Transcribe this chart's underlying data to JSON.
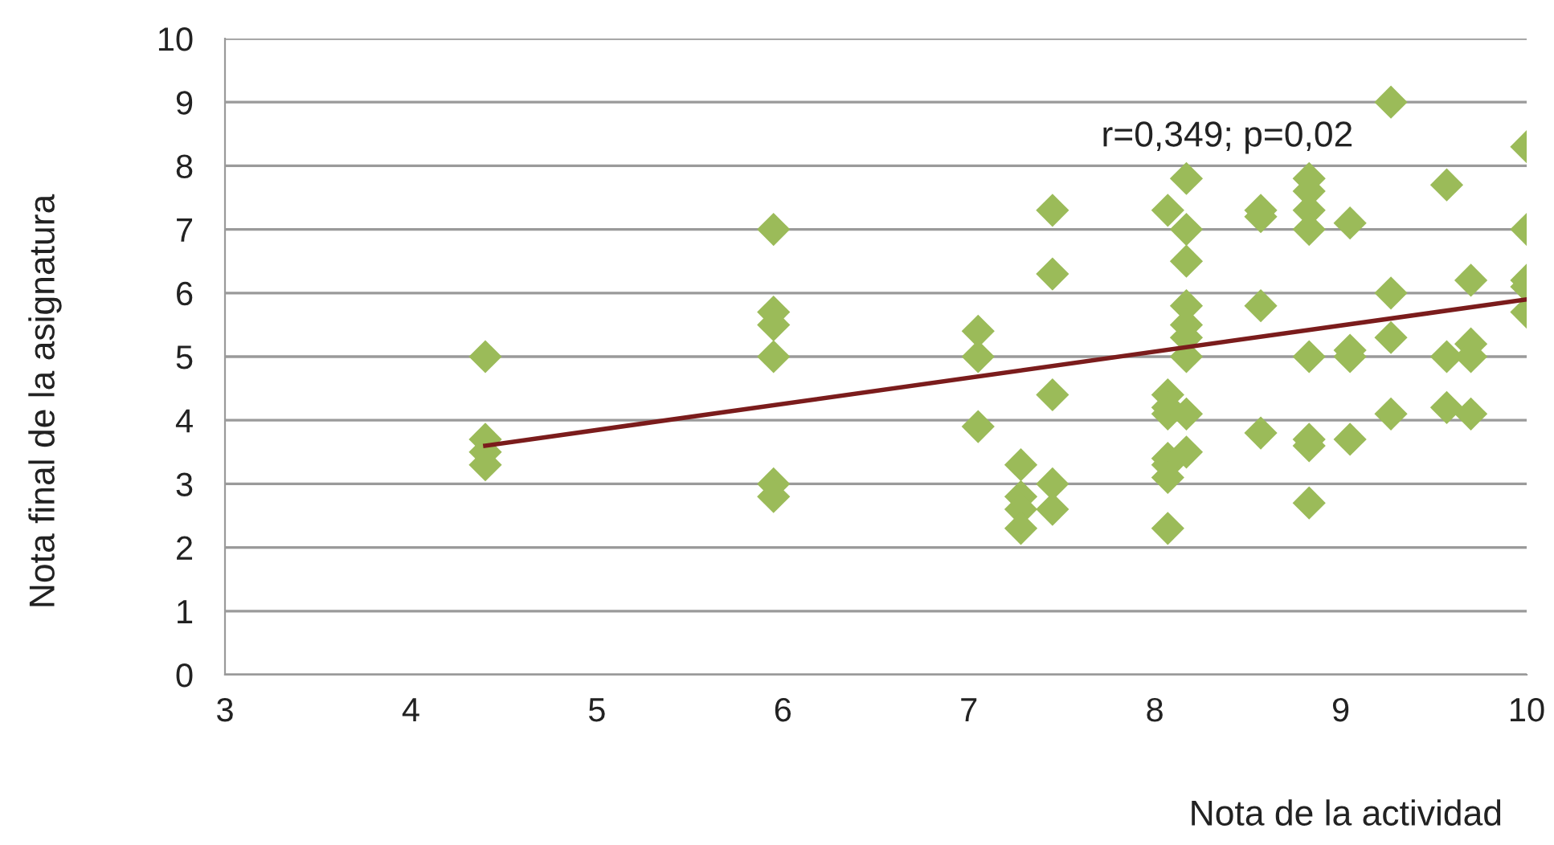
{
  "chart_data": {
    "type": "scatter",
    "xlabel": "Nota de la actividad",
    "ylabel": "Nota final de la asignatura",
    "annotations": [
      "r=0,349; p=0,02"
    ],
    "xlim": [
      3,
      10
    ],
    "xticks": [
      3,
      4,
      5,
      6,
      7,
      8,
      9,
      10
    ],
    "ylim": [
      0,
      10
    ],
    "yticks": [
      0,
      1,
      2,
      3,
      4,
      5,
      6,
      7,
      8,
      9,
      10
    ],
    "grid": "y",
    "marker": "diamond",
    "series": [
      {
        "color": "#9bbb59",
        "x": [
          4.4,
          4.4,
          4.4,
          4.4,
          5.95,
          5.95,
          5.95,
          5.95,
          5.95,
          5.95,
          7.05,
          7.05,
          7.05,
          7.28,
          7.28,
          7.28,
          7.28,
          7.45,
          7.45,
          7.45,
          7.45,
          7.45,
          8.07,
          8.07,
          8.07,
          8.07,
          8.07,
          8.07,
          8.07,
          8.07,
          8.17,
          8.17,
          8.17,
          8.17,
          8.17,
          8.17,
          8.17,
          8.17,
          8.17,
          8.57,
          8.57,
          8.57,
          8.57,
          8.83,
          8.83,
          8.83,
          8.83,
          8.83,
          8.83,
          8.83,
          8.83,
          9.05,
          9.05,
          9.05,
          9.05,
          9.27,
          9.27,
          9.27,
          9.27,
          9.57,
          9.57,
          9.57,
          9.7,
          9.7,
          9.7,
          9.7,
          10,
          10,
          10,
          10,
          10
        ],
        "values": [
          5.0,
          3.7,
          3.5,
          3.3,
          7.0,
          5.7,
          5.5,
          5.0,
          3.0,
          2.8,
          5.4,
          5.0,
          3.9,
          3.3,
          2.8,
          2.6,
          2.3,
          7.3,
          6.3,
          4.4,
          3.0,
          2.6,
          7.3,
          4.4,
          4.2,
          4.1,
          3.4,
          3.3,
          3.1,
          2.3,
          7.8,
          7.0,
          6.5,
          5.8,
          5.5,
          5.3,
          5.0,
          4.1,
          3.5,
          7.3,
          7.2,
          5.8,
          3.8,
          7.8,
          7.6,
          7.3,
          7.0,
          5.0,
          3.7,
          3.6,
          2.7,
          7.1,
          5.1,
          5.0,
          3.7,
          9.0,
          6.0,
          5.3,
          4.1,
          7.7,
          5.0,
          4.2,
          6.2,
          5.2,
          5.0,
          4.1,
          8.3,
          7.0,
          6.2,
          6.1,
          5.7
        ]
      },
      {
        "type": "line",
        "color": "#7b1c1c",
        "x": [
          4.4,
          10
        ],
        "values": [
          3.6,
          5.9
        ],
        "marker": "none"
      }
    ]
  }
}
